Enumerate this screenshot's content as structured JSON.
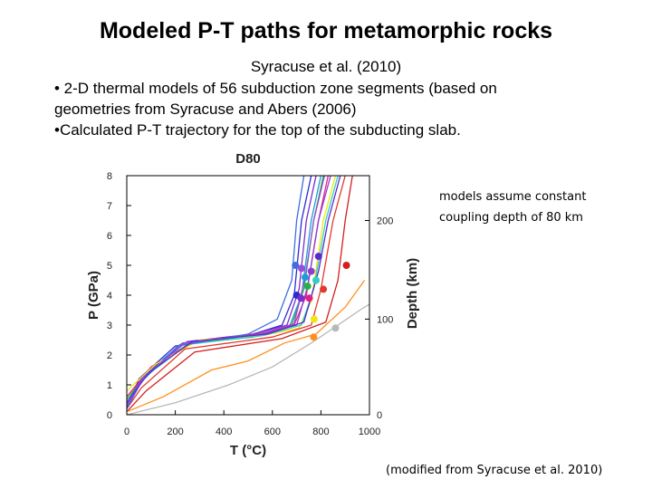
{
  "slide": {
    "title": "Modeled P-T paths for metamorphic rocks",
    "citation": "Syracuse et al. (2010)",
    "bullets": [
      "• 2-D thermal models of 56 subduction zone segments (based on",
      "geometries from Syracuse and Abers (2006)",
      "•Calculated P-T trajectory for the top of the subducting slab."
    ],
    "note_lines": [
      "models assume constant",
      "coupling depth of 80 km"
    ],
    "credit": "(modified from  Syracuse et al. 2010)"
  },
  "chart_data": {
    "type": "line",
    "title": "D80",
    "xlabel": "T (°C)",
    "ylabel": "P (GPa)",
    "y2label": "Depth (km)",
    "xlim": [
      0,
      1000
    ],
    "ylim": [
      0,
      8
    ],
    "x_ticks": [
      "0",
      "200",
      "400",
      "600",
      "800",
      "1000"
    ],
    "y_ticks": [
      "0",
      "1",
      "2",
      "3",
      "4",
      "5",
      "6",
      "7",
      "8"
    ],
    "y2_ticks": [
      "0",
      "100",
      "200"
    ],
    "grid": false,
    "series": [
      {
        "color": "#2b2bd6",
        "points": [
          [
            0,
            0.2
          ],
          [
            50,
            1.2
          ],
          [
            200,
            2.3
          ],
          [
            500,
            2.65
          ],
          [
            640,
            3.0
          ],
          [
            690,
            4.0
          ],
          [
            720,
            6.5
          ],
          [
            760,
            8
          ]
        ],
        "marker": [
          700,
          4.0
        ]
      },
      {
        "color": "#7b2cc9",
        "points": [
          [
            0,
            0.4
          ],
          [
            80,
            1.4
          ],
          [
            250,
            2.45
          ],
          [
            520,
            2.7
          ],
          [
            660,
            3.0
          ],
          [
            710,
            4.2
          ],
          [
            740,
            6.5
          ],
          [
            780,
            8
          ]
        ],
        "marker": [
          718,
          3.9
        ]
      },
      {
        "color": "#1f9bd8",
        "points": [
          [
            0,
            0.3
          ],
          [
            70,
            1.3
          ],
          [
            220,
            2.35
          ],
          [
            520,
            2.6
          ],
          [
            670,
            2.95
          ],
          [
            720,
            4.0
          ],
          [
            760,
            6.5
          ],
          [
            800,
            8
          ]
        ],
        "marker": [
          735,
          4.6
        ]
      },
      {
        "color": "#22b14c",
        "points": [
          [
            0,
            0.5
          ],
          [
            90,
            1.5
          ],
          [
            260,
            2.4
          ],
          [
            540,
            2.65
          ],
          [
            680,
            3.0
          ],
          [
            730,
            4.2
          ],
          [
            770,
            6.5
          ],
          [
            810,
            8
          ]
        ],
        "marker": [
          745,
          4.3
        ]
      },
      {
        "color": "#e0208a",
        "points": [
          [
            0,
            0.6
          ],
          [
            100,
            1.6
          ],
          [
            280,
            2.45
          ],
          [
            540,
            2.7
          ],
          [
            690,
            3.0
          ],
          [
            740,
            4.0
          ],
          [
            790,
            6.5
          ],
          [
            830,
            8
          ]
        ],
        "marker": [
          752,
          3.9
        ]
      },
      {
        "color": "#8b3fd0",
        "points": [
          [
            0,
            0.3
          ],
          [
            60,
            1.2
          ],
          [
            230,
            2.4
          ],
          [
            560,
            2.7
          ],
          [
            700,
            3.0
          ],
          [
            745,
            4.3
          ],
          [
            790,
            6.5
          ],
          [
            840,
            8
          ]
        ],
        "marker": [
          760,
          4.8
        ]
      },
      {
        "color": "#f1e60f",
        "points": [
          [
            0,
            0.8
          ],
          [
            120,
            1.7
          ],
          [
            300,
            2.5
          ],
          [
            560,
            2.65
          ],
          [
            710,
            2.9
          ],
          [
            760,
            3.8
          ],
          [
            810,
            6.5
          ],
          [
            860,
            8
          ]
        ],
        "marker": [
          772,
          3.2
        ]
      },
      {
        "color": "#2fd0c0",
        "points": [
          [
            0,
            0.4
          ],
          [
            80,
            1.3
          ],
          [
            250,
            2.35
          ],
          [
            560,
            2.65
          ],
          [
            720,
            3.0
          ],
          [
            770,
            4.2
          ],
          [
            820,
            6.5
          ],
          [
            870,
            8
          ]
        ],
        "marker": [
          780,
          4.5
        ]
      },
      {
        "color": "#e23a2a",
        "points": [
          [
            0,
            0.2
          ],
          [
            60,
            0.9
          ],
          [
            240,
            2.2
          ],
          [
            600,
            2.6
          ],
          [
            760,
            3.0
          ],
          [
            800,
            4.2
          ],
          [
            850,
            6.5
          ],
          [
            900,
            8
          ]
        ],
        "marker": [
          810,
          4.2
        ]
      },
      {
        "color": "#d12020",
        "points": [
          [
            0,
            0.1
          ],
          [
            80,
            0.8
          ],
          [
            280,
            2.1
          ],
          [
            640,
            2.55
          ],
          [
            820,
            3.1
          ],
          [
            870,
            4.5
          ],
          [
            900,
            6.5
          ],
          [
            930,
            8
          ]
        ],
        "marker": [
          905,
          5.0
        ]
      },
      {
        "color": "#ff9020",
        "points": [
          [
            0,
            0.1
          ],
          [
            150,
            0.6
          ],
          [
            350,
            1.5
          ],
          [
            500,
            1.8
          ],
          [
            650,
            2.4
          ],
          [
            780,
            2.7
          ],
          [
            900,
            3.6
          ],
          [
            980,
            4.5
          ]
        ],
        "marker": [
          770,
          2.6
        ]
      },
      {
        "color": "#b8b8b8",
        "points": [
          [
            0,
            0.0
          ],
          [
            200,
            0.4
          ],
          [
            420,
            1.0
          ],
          [
            600,
            1.6
          ],
          [
            760,
            2.4
          ],
          [
            870,
            3.0
          ],
          [
            960,
            3.5
          ],
          [
            1000,
            3.7
          ]
        ],
        "marker": [
          860,
          2.9
        ]
      },
      {
        "color": "#3d6fe0",
        "points": [
          [
            0,
            0.2
          ],
          [
            60,
            1.1
          ],
          [
            210,
            2.3
          ],
          [
            500,
            2.7
          ],
          [
            620,
            3.2
          ],
          [
            680,
            4.5
          ],
          [
            700,
            6.5
          ],
          [
            730,
            8
          ]
        ],
        "marker": [
          695,
          5.0
        ]
      },
      {
        "color": "#9b4dd8",
        "points": [
          [
            0,
            0.3
          ],
          [
            70,
            1.25
          ],
          [
            240,
            2.4
          ],
          [
            540,
            2.68
          ],
          [
            690,
            3.05
          ],
          [
            735,
            4.6
          ],
          [
            770,
            6.5
          ],
          [
            815,
            8
          ]
        ],
        "marker": [
          720,
          4.9
        ]
      },
      {
        "color": "#5a2ad0",
        "points": [
          [
            0,
            0.4
          ],
          [
            90,
            1.4
          ],
          [
            270,
            2.45
          ],
          [
            580,
            2.7
          ],
          [
            730,
            3.1
          ],
          [
            790,
            4.8
          ],
          [
            830,
            6.5
          ],
          [
            880,
            8
          ]
        ],
        "marker": [
          790,
          5.3
        ]
      }
    ]
  }
}
